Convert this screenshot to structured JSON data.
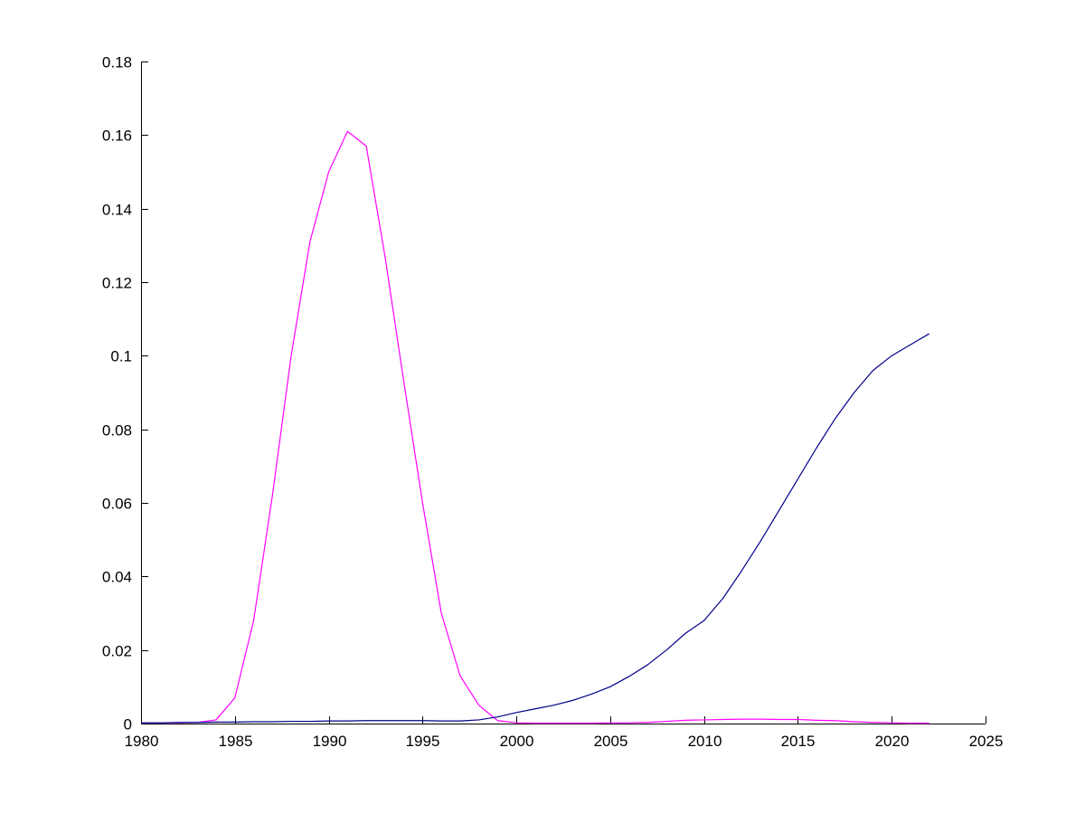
{
  "chart_data": {
    "type": "line",
    "title": "",
    "xlabel": "",
    "ylabel": "",
    "grid": false,
    "legend": null,
    "axis_color": "#000000",
    "background_color": "#ffffff",
    "xlim": [
      1980,
      2025
    ],
    "ylim": [
      0,
      0.18
    ],
    "xticks": [
      {
        "v": 1980,
        "label": "1980"
      },
      {
        "v": 1985,
        "label": "1985"
      },
      {
        "v": 1990,
        "label": "1990"
      },
      {
        "v": 1995,
        "label": "1995"
      },
      {
        "v": 2000,
        "label": "2000"
      },
      {
        "v": 2005,
        "label": "2005"
      },
      {
        "v": 2010,
        "label": "2010"
      },
      {
        "v": 2015,
        "label": "2015"
      },
      {
        "v": 2020,
        "label": "2020"
      },
      {
        "v": 2025,
        "label": "2025"
      }
    ],
    "yticks": [
      {
        "v": 0,
        "label": "0"
      },
      {
        "v": 0.02,
        "label": "0.02"
      },
      {
        "v": 0.04,
        "label": "0.04"
      },
      {
        "v": 0.06,
        "label": "0.06"
      },
      {
        "v": 0.08,
        "label": "0.08"
      },
      {
        "v": 0.1,
        "label": "0.1"
      },
      {
        "v": 0.12,
        "label": "0.12"
      },
      {
        "v": 0.14,
        "label": "0.14"
      },
      {
        "v": 0.16,
        "label": "0.16"
      },
      {
        "v": 0.18,
        "label": "0.18"
      }
    ],
    "x": [
      1980,
      1981,
      1982,
      1983,
      1984,
      1985,
      1986,
      1987,
      1988,
      1989,
      1990,
      1991,
      1992,
      1993,
      1994,
      1995,
      1996,
      1997,
      1998,
      1999,
      2000,
      2001,
      2002,
      2003,
      2004,
      2005,
      2006,
      2007,
      2008,
      2009,
      2010,
      2011,
      2012,
      2013,
      2014,
      2015,
      2016,
      2017,
      2018,
      2019,
      2020,
      2021,
      2022
    ],
    "series": [
      {
        "name": "magenta-series",
        "color": "#FF00FF",
        "values": [
          0.0002,
          0.0002,
          0.0002,
          0.0003,
          0.001,
          0.007,
          0.028,
          0.062,
          0.1,
          0.131,
          0.15,
          0.161,
          0.157,
          0.127,
          0.093,
          0.06,
          0.03,
          0.013,
          0.005,
          0.0008,
          0.0002,
          0.0001,
          0.0001,
          0.0001,
          0.0001,
          0.0002,
          0.0002,
          0.0003,
          0.0006,
          0.0009,
          0.001,
          0.0011,
          0.0012,
          0.0012,
          0.0011,
          0.0011,
          0.0009,
          0.0008,
          0.0005,
          0.0003,
          0.0002,
          0.0001,
          0.0001
        ]
      },
      {
        "name": "dark-blue-series",
        "color": "#00008B",
        "values": [
          0.0002,
          0.0002,
          0.0003,
          0.0003,
          0.0004,
          0.0004,
          0.0005,
          0.0005,
          0.0006,
          0.0006,
          0.0007,
          0.0007,
          0.0008,
          0.0008,
          0.0008,
          0.0008,
          0.0007,
          0.0007,
          0.001,
          0.0018,
          0.003,
          0.004,
          0.005,
          0.0063,
          0.008,
          0.01,
          0.0128,
          0.016,
          0.02,
          0.0245,
          0.028,
          0.034,
          0.0415,
          0.0495,
          0.058,
          0.0665,
          0.075,
          0.083,
          0.09,
          0.096,
          0.1,
          0.103,
          0.106
        ]
      }
    ]
  }
}
